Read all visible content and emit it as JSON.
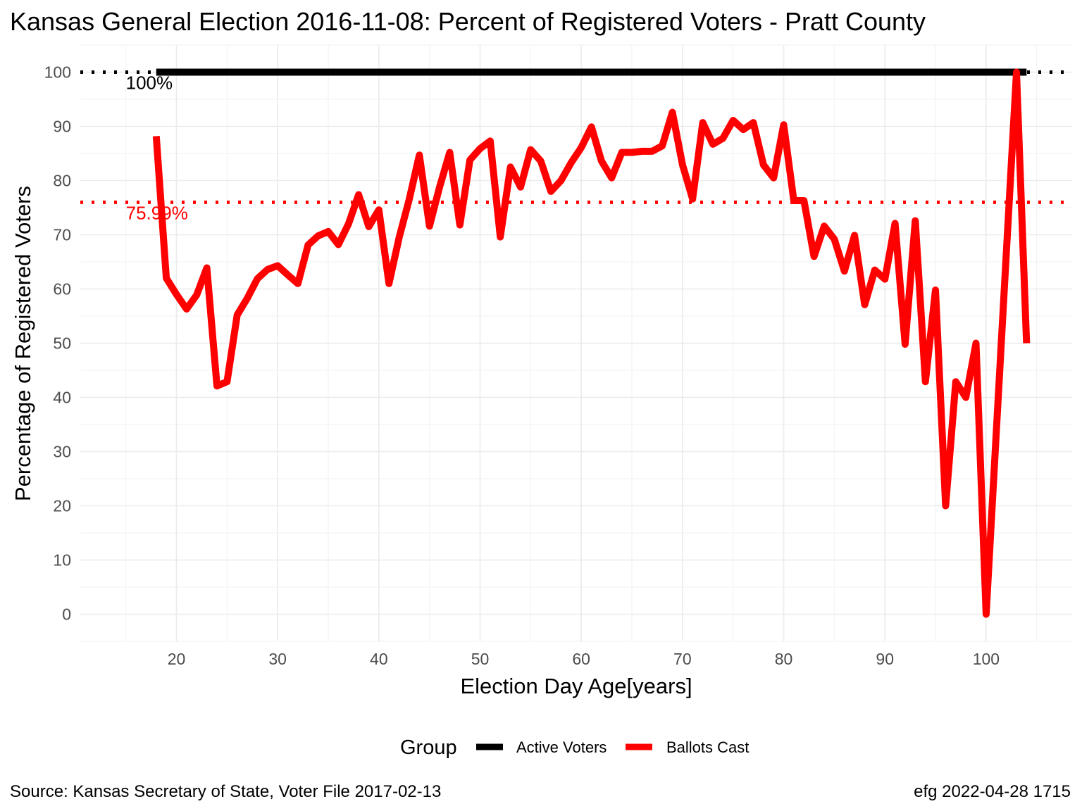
{
  "chart_data": {
    "type": "line",
    "title": "Kansas General Election 2016-11-08:  Percent of Registered Voters - Pratt County",
    "xlabel": "Election Day Age[years]",
    "ylabel": "Percentage of Registered Voters",
    "xlim": [
      10.5,
      108.5
    ],
    "ylim": [
      -5,
      105
    ],
    "x_ticks": [
      20,
      30,
      40,
      50,
      60,
      70,
      80,
      90,
      100
    ],
    "y_ticks": [
      0,
      10,
      20,
      30,
      40,
      50,
      60,
      70,
      80,
      90,
      100
    ],
    "grid": true,
    "legend": {
      "title": "Group",
      "position": "bottom",
      "entries": [
        {
          "label": "Active Voters",
          "color": "#000000"
        },
        {
          "label": "Ballots Cast",
          "color": "#ff0000"
        }
      ]
    },
    "reference_lines": [
      {
        "y": 100,
        "label": "100%",
        "color": "#000000",
        "style": "dotted"
      },
      {
        "y": 75.99,
        "label": "75.99%",
        "color": "#ff0000",
        "style": "dotted"
      }
    ],
    "series": [
      {
        "name": "Active Voters",
        "color": "#000000",
        "x": [
          18,
          104
        ],
        "y": [
          100,
          100
        ]
      },
      {
        "name": "Ballots Cast",
        "color": "#ff0000",
        "x": [
          18,
          19,
          20,
          21,
          22,
          23,
          24,
          25,
          26,
          27,
          28,
          29,
          30,
          31,
          32,
          33,
          34,
          35,
          36,
          37,
          38,
          39,
          40,
          41,
          42,
          43,
          44,
          45,
          46,
          47,
          48,
          49,
          50,
          51,
          52,
          53,
          54,
          55,
          56,
          57,
          58,
          59,
          60,
          61,
          62,
          63,
          64,
          65,
          66,
          67,
          68,
          69,
          70,
          71,
          72,
          73,
          74,
          75,
          76,
          77,
          78,
          79,
          80,
          81,
          82,
          83,
          84,
          85,
          86,
          87,
          88,
          89,
          90,
          91,
          92,
          93,
          94,
          95,
          96,
          97,
          98,
          99,
          100,
          101,
          102,
          103,
          104
        ],
        "y": [
          88.2,
          62.0,
          59.0,
          56.3,
          58.9,
          63.9,
          42.1,
          42.9,
          55.2,
          58.3,
          61.9,
          63.6,
          64.3,
          62.6,
          61.0,
          68.1,
          69.8,
          70.6,
          68.2,
          72.0,
          77.4,
          71.5,
          74.6,
          61.0,
          69.5,
          76.5,
          84.7,
          71.6,
          78.8,
          85.2,
          71.8,
          83.8,
          85.9,
          87.3,
          69.6,
          82.5,
          78.8,
          85.7,
          83.6,
          78.0,
          80.0,
          83.3,
          86.1,
          89.9,
          83.6,
          80.5,
          85.2,
          85.2,
          85.4,
          85.4,
          86.4,
          92.6,
          82.9,
          76.6,
          90.7,
          86.7,
          87.8,
          91.1,
          89.4,
          90.7,
          82.9,
          80.5,
          90.3,
          76.3,
          76.3,
          66.0,
          71.6,
          69.2,
          63.3,
          69.9,
          57.1,
          63.5,
          61.8,
          72.1,
          49.8,
          72.6,
          42.9,
          59.8,
          20.0,
          42.9,
          40.0,
          50.0,
          0.0,
          33.3,
          66.7,
          100.0,
          50.0
        ]
      }
    ]
  },
  "caption_left": "Source:  Kansas Secretary of State, Voter File  2017-02-13",
  "caption_right": "efg 2022-04-28 1715"
}
